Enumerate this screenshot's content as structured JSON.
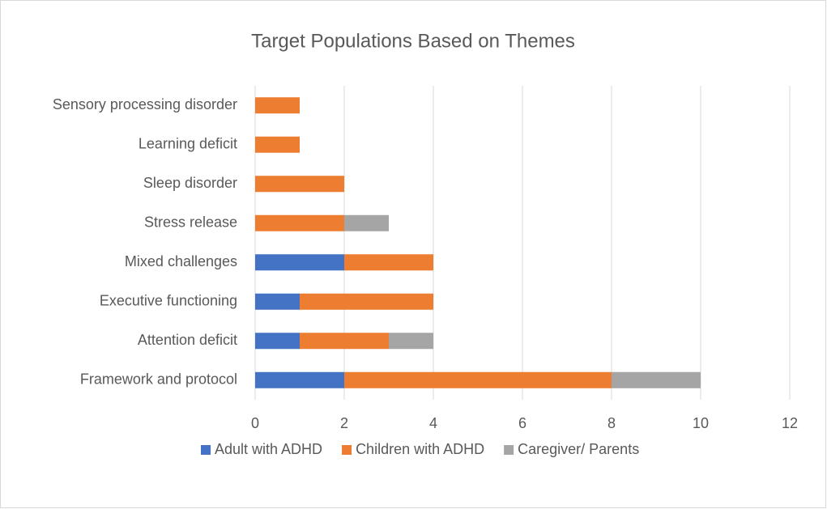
{
  "chart_data": {
    "type": "bar",
    "orientation": "horizontal",
    "stacked": true,
    "title": "Target Populations Based on Themes",
    "categories": [
      "Framework and protocol",
      "Attention deficit",
      "Executive functioning",
      "Mixed challenges",
      "Stress release",
      "Sleep disorder",
      "Learning deficit",
      "Sensory processing disorder"
    ],
    "series": [
      {
        "name": "Adult with ADHD",
        "color": "#4472c4",
        "values": [
          2,
          1,
          1,
          2,
          0,
          0,
          0,
          0
        ]
      },
      {
        "name": "Children with ADHD",
        "color": "#ed7d31",
        "values": [
          6,
          2,
          3,
          2,
          2,
          2,
          1,
          1
        ]
      },
      {
        "name": "Caregiver/ Parents",
        "color": "#a5a5a5",
        "values": [
          2,
          1,
          0,
          0,
          1,
          0,
          0,
          0
        ]
      }
    ],
    "xlim": [
      0,
      12
    ],
    "xticks": [
      0,
      2,
      4,
      6,
      8,
      10,
      12
    ],
    "grid": true,
    "legend": "bottom"
  }
}
